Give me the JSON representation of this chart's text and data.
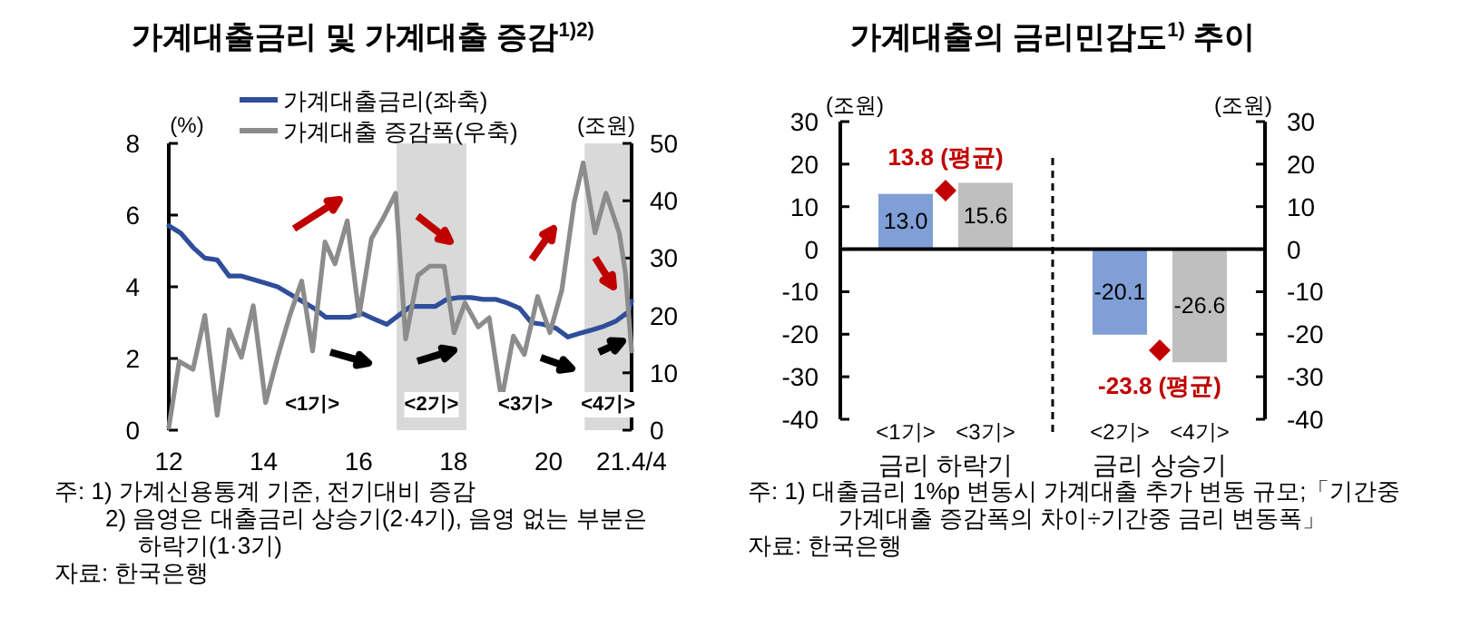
{
  "chart_data": [
    {
      "type": "line",
      "title": "가계대출금리 및 가계대출 증감$^{1)2)}$",
      "ylabel": "(%)",
      "y2label": "(조원)",
      "xlim": [
        12,
        21.75
      ],
      "xticks": [
        12,
        14,
        16,
        18,
        20,
        {
          "value": 21.75,
          "label": "21.4/4"
        }
      ],
      "ylim": [
        0,
        8
      ],
      "yticks": [
        0,
        2,
        4,
        6,
        8
      ],
      "y2lim": [
        0,
        50
      ],
      "y2ticks": [
        0,
        10,
        20,
        30,
        40,
        50
      ],
      "legend": "top",
      "line_style": "solid",
      "series": [
        {
          "name": "가계대출금리(좌축)",
          "color": "#2f4e9a",
          "x": [
            12.0,
            12.25,
            12.51,
            12.76,
            13.02,
            13.27,
            13.53,
            13.78,
            14.04,
            14.29,
            14.55,
            14.8,
            15.06,
            15.31,
            15.57,
            15.82,
            16.08,
            16.33,
            16.59,
            16.84,
            17.1,
            17.35,
            17.61,
            17.86,
            18.11,
            18.37,
            18.62,
            18.88,
            19.13,
            19.39,
            19.64,
            19.9,
            20.15,
            20.41,
            20.66,
            20.92,
            21.17,
            21.43,
            21.68,
            21.75
          ],
          "values": [
            5.7,
            5.5,
            5.1,
            4.8,
            4.75,
            4.3,
            4.3,
            4.2,
            4.1,
            4.0,
            3.8,
            3.6,
            3.4,
            3.15,
            3.15,
            3.15,
            3.25,
            3.1,
            2.95,
            3.2,
            3.45,
            3.45,
            3.45,
            3.65,
            3.7,
            3.7,
            3.65,
            3.65,
            3.55,
            3.4,
            3.0,
            2.95,
            2.85,
            2.6,
            2.7,
            2.8,
            2.9,
            3.05,
            3.3,
            3.6
          ]
        },
        {
          "name": "가계대출 증감폭(우축)",
          "color": "#8c8c8c",
          "axis": "y2",
          "x": [
            12.0,
            12.22,
            12.51,
            12.76,
            13.02,
            13.27,
            13.53,
            13.78,
            14.04,
            14.29,
            14.55,
            14.8,
            15.03,
            15.29,
            15.5,
            15.76,
            16.01,
            16.27,
            16.52,
            16.78,
            16.99,
            17.25,
            17.5,
            17.8,
            18.01,
            18.24,
            18.52,
            18.75,
            19.01,
            19.26,
            19.49,
            19.77,
            20.03,
            20.28,
            20.54,
            20.73,
            20.98,
            21.21,
            21.49,
            21.62,
            21.75
          ],
          "values": [
            0.5,
            12,
            10.6,
            20,
            2.6,
            17.5,
            12.7,
            21.7,
            4.8,
            12.7,
            20,
            26,
            13.8,
            32.8,
            29,
            36.5,
            20,
            33.4,
            37,
            41.3,
            15.9,
            27,
            28.6,
            28.6,
            17,
            22.2,
            18,
            19.6,
            5.3,
            16.4,
            13.2,
            23.3,
            17,
            24.4,
            39.7,
            46.6,
            34.4,
            41.3,
            34.4,
            27.5,
            13.8
          ]
        }
      ],
      "bands": [
        {
          "axis": "x",
          "from": 16.8,
          "to": 18.27,
          "color": "#d9d9d9"
        },
        {
          "axis": "x",
          "from": 20.76,
          "to": 21.75,
          "color": "#d9d9d9"
        }
      ],
      "annotations": [
        "<1기>",
        "<2기>",
        "<3기>",
        "<4기>",
        "주: 1) 가계신용통계 기준, 전기대비 증감",
        "2) 음영은 대출금리 상승기(2·4기), 음영 없는 부분은 하락기(1·3기)",
        "자료: 한국은행"
      ]
    },
    {
      "type": "bar",
      "title": "가계대출의 금리민감도$^{1)}$ 추이",
      "ylabel": "(조원)",
      "y2label": "(조원)",
      "categories": [
        "<1기>",
        "<3기>",
        "<2기>",
        "<4기>"
      ],
      "values": [
        13.0,
        15.6,
        -20.1,
        -26.6
      ],
      "colors": [
        "#7f9fd6",
        "#bfbfbf",
        "#7f9fd6",
        "#bfbfbf"
      ],
      "value_labels": [
        "13.0",
        "15.6",
        "-20.1",
        "-26.6"
      ],
      "ylim": [
        -40,
        30
      ],
      "yticks": [
        -40,
        -30,
        -20,
        -10,
        0,
        10,
        20,
        30
      ],
      "y2lim": [
        -40,
        30
      ],
      "y2ticks": [
        -40,
        -30,
        -20,
        -10,
        0,
        10,
        20,
        30
      ],
      "annotations": [
        {
          "text": "13.8 (평균)",
          "y": 13.8
        },
        {
          "text": "-23.8 (평균)",
          "y": -23.8
        },
        "금리 하락기",
        "금리 상승기",
        "주: 1) 대출금리 1%p 변동시 가계대출 추가 변동 규모;「기간중 가계대출 증감폭의 차이÷기간중 금리 변동폭」",
        "자료: 한국은행"
      ]
    }
  ]
}
